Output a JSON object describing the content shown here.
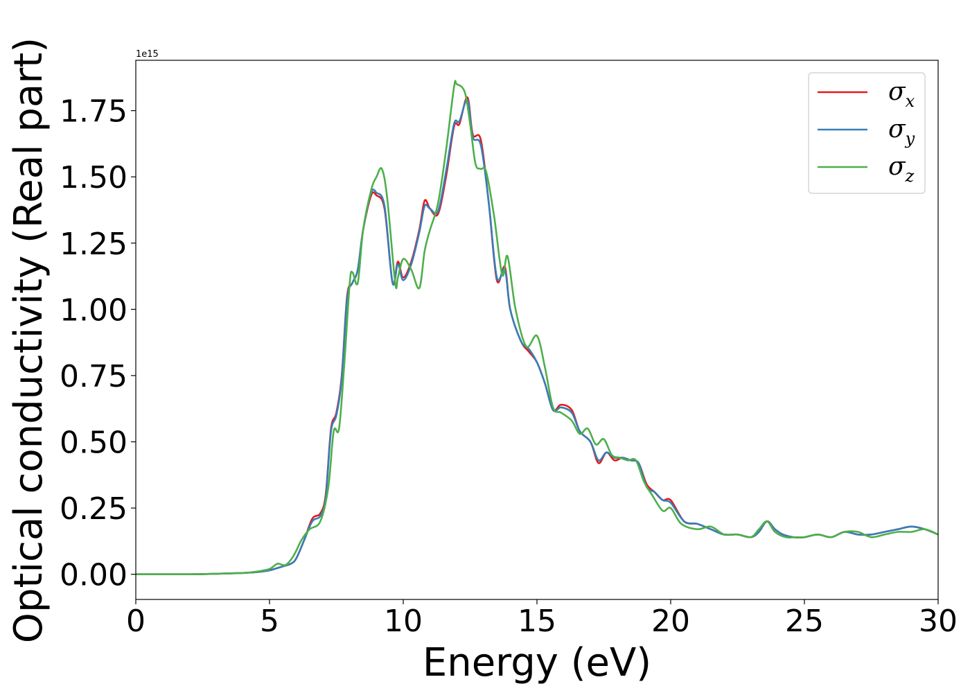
{
  "chart_data": {
    "type": "line",
    "title": "",
    "xlabel": "Energy (eV)",
    "ylabel": "Optical conductivity (Real part)",
    "y_offset_label": "1e15",
    "y_scale": 1000000000000000.0,
    "xlim": [
      0,
      30
    ],
    "ylim": [
      -0.095,
      1.94
    ],
    "x_ticks": [
      0,
      5,
      10,
      15,
      20,
      25,
      30
    ],
    "x_tick_labels": [
      "0",
      "5",
      "10",
      "15",
      "20",
      "25",
      "30"
    ],
    "y_ticks": [
      0.0,
      0.25,
      0.5,
      0.75,
      1.0,
      1.25,
      1.5,
      1.75
    ],
    "y_tick_labels": [
      "0.00",
      "0.25",
      "0.50",
      "0.75",
      "1.00",
      "1.25",
      "1.50",
      "1.75"
    ],
    "grid": false,
    "legend_position": "top-right",
    "series": [
      {
        "name": "σx",
        "symbol": "σ",
        "subscript": "x",
        "color": "#e41a1c",
        "x": [
          0,
          2,
          3,
          4,
          4.5,
          5,
          5.5,
          5.8,
          6,
          6.3,
          6.6,
          6.9,
          7.1,
          7.3,
          7.5,
          7.7,
          7.9,
          8.1,
          8.3,
          8.5,
          8.8,
          9.0,
          9.3,
          9.6,
          9.8,
          10.0,
          10.3,
          10.6,
          10.8,
          11.0,
          11.3,
          11.6,
          11.9,
          12.1,
          12.4,
          12.6,
          12.9,
          13.2,
          13.5,
          13.8,
          14.0,
          14.4,
          14.7,
          15.0,
          15.3,
          15.6,
          15.9,
          16.3,
          16.6,
          17.0,
          17.3,
          17.6,
          17.9,
          18.2,
          18.5,
          18.8,
          19.1,
          19.4,
          19.7,
          20.0,
          20.5,
          21.0,
          21.5,
          22.0,
          22.5,
          23.0,
          23.3,
          23.6,
          23.9,
          24.2,
          24.6,
          25.0,
          25.5,
          26.0,
          26.5,
          27.0,
          27.5,
          28.0,
          28.5,
          29.0,
          29.5,
          30.0
        ],
        "y": [
          0.0,
          0.0,
          0.002,
          0.005,
          0.008,
          0.015,
          0.03,
          0.04,
          0.06,
          0.13,
          0.21,
          0.23,
          0.3,
          0.55,
          0.61,
          0.75,
          1.05,
          1.1,
          1.15,
          1.3,
          1.43,
          1.43,
          1.38,
          1.1,
          1.18,
          1.12,
          1.18,
          1.3,
          1.41,
          1.38,
          1.36,
          1.5,
          1.69,
          1.7,
          1.8,
          1.66,
          1.64,
          1.4,
          1.11,
          1.16,
          1.0,
          0.88,
          0.84,
          0.8,
          0.72,
          0.62,
          0.64,
          0.62,
          0.54,
          0.5,
          0.42,
          0.46,
          0.43,
          0.44,
          0.43,
          0.42,
          0.34,
          0.31,
          0.28,
          0.28,
          0.2,
          0.19,
          0.17,
          0.15,
          0.15,
          0.14,
          0.16,
          0.2,
          0.17,
          0.15,
          0.14,
          0.14,
          0.15,
          0.14,
          0.16,
          0.15,
          0.15,
          0.16,
          0.17,
          0.18,
          0.17,
          0.15
        ]
      },
      {
        "name": "σy",
        "symbol": "σ",
        "subscript": "y",
        "color": "#377eb8",
        "x": [
          0,
          2,
          3,
          4,
          4.5,
          5,
          5.5,
          5.8,
          6,
          6.3,
          6.6,
          6.9,
          7.1,
          7.3,
          7.5,
          7.7,
          7.9,
          8.1,
          8.3,
          8.5,
          8.8,
          9.0,
          9.3,
          9.6,
          9.8,
          10.0,
          10.3,
          10.6,
          10.8,
          11.0,
          11.3,
          11.6,
          11.9,
          12.1,
          12.4,
          12.6,
          12.9,
          13.2,
          13.5,
          13.8,
          14.0,
          14.4,
          14.7,
          15.0,
          15.3,
          15.6,
          15.9,
          16.3,
          16.6,
          17.0,
          17.3,
          17.6,
          17.9,
          18.2,
          18.5,
          18.8,
          19.1,
          19.4,
          19.7,
          20.0,
          20.5,
          21.0,
          21.5,
          22.0,
          22.5,
          23.0,
          23.3,
          23.6,
          23.9,
          24.2,
          24.6,
          25.0,
          25.5,
          26.0,
          26.5,
          27.0,
          27.5,
          28.0,
          28.5,
          29.0,
          29.5,
          30.0
        ],
        "y": [
          0.0,
          0.0,
          0.002,
          0.005,
          0.008,
          0.015,
          0.03,
          0.04,
          0.06,
          0.13,
          0.2,
          0.22,
          0.29,
          0.54,
          0.6,
          0.74,
          1.04,
          1.1,
          1.15,
          1.3,
          1.44,
          1.44,
          1.39,
          1.1,
          1.17,
          1.11,
          1.17,
          1.29,
          1.39,
          1.38,
          1.37,
          1.52,
          1.7,
          1.71,
          1.79,
          1.65,
          1.62,
          1.4,
          1.12,
          1.15,
          1.0,
          0.88,
          0.85,
          0.8,
          0.72,
          0.62,
          0.63,
          0.61,
          0.54,
          0.5,
          0.43,
          0.46,
          0.44,
          0.44,
          0.43,
          0.42,
          0.33,
          0.31,
          0.28,
          0.27,
          0.2,
          0.19,
          0.17,
          0.15,
          0.15,
          0.14,
          0.16,
          0.2,
          0.17,
          0.15,
          0.14,
          0.14,
          0.15,
          0.14,
          0.16,
          0.15,
          0.15,
          0.16,
          0.17,
          0.18,
          0.17,
          0.15
        ]
      },
      {
        "name": "σz",
        "symbol": "σ",
        "subscript": "z",
        "color": "#4daf4a",
        "x": [
          0,
          2,
          3,
          4,
          4.5,
          5,
          5.3,
          5.6,
          5.9,
          6.2,
          6.5,
          6.9,
          7.2,
          7.4,
          7.6,
          7.8,
          8.0,
          8.1,
          8.3,
          8.5,
          8.8,
          9.0,
          9.2,
          9.4,
          9.7,
          9.8,
          10.0,
          10.3,
          10.6,
          10.8,
          11.0,
          11.3,
          11.6,
          11.9,
          12.0,
          12.3,
          12.5,
          12.7,
          12.9,
          13.1,
          13.4,
          13.7,
          13.9,
          14.2,
          14.6,
          15.0,
          15.3,
          15.6,
          15.9,
          16.3,
          16.6,
          16.9,
          17.2,
          17.5,
          17.8,
          18.1,
          18.4,
          18.7,
          19.0,
          19.3,
          19.7,
          20.0,
          20.4,
          21.0,
          21.5,
          22.0,
          22.5,
          23.0,
          23.3,
          23.6,
          23.9,
          24.3,
          24.7,
          25.0,
          25.5,
          26.0,
          26.5,
          27.0,
          27.5,
          28.0,
          28.5,
          29.0,
          29.5,
          30.0
        ],
        "y": [
          0.0,
          0.0,
          0.002,
          0.005,
          0.01,
          0.02,
          0.04,
          0.035,
          0.07,
          0.13,
          0.17,
          0.2,
          0.33,
          0.54,
          0.55,
          0.8,
          1.1,
          1.14,
          1.1,
          1.3,
          1.45,
          1.5,
          1.53,
          1.42,
          1.1,
          1.12,
          1.19,
          1.15,
          1.08,
          1.22,
          1.3,
          1.4,
          1.6,
          1.84,
          1.85,
          1.82,
          1.7,
          1.55,
          1.53,
          1.52,
          1.35,
          1.13,
          1.2,
          1.0,
          0.86,
          0.9,
          0.78,
          0.63,
          0.61,
          0.58,
          0.53,
          0.55,
          0.49,
          0.51,
          0.45,
          0.44,
          0.43,
          0.43,
          0.35,
          0.3,
          0.24,
          0.25,
          0.19,
          0.17,
          0.18,
          0.15,
          0.15,
          0.14,
          0.17,
          0.2,
          0.16,
          0.14,
          0.14,
          0.14,
          0.15,
          0.14,
          0.16,
          0.16,
          0.14,
          0.15,
          0.16,
          0.16,
          0.17,
          0.15
        ]
      }
    ]
  }
}
